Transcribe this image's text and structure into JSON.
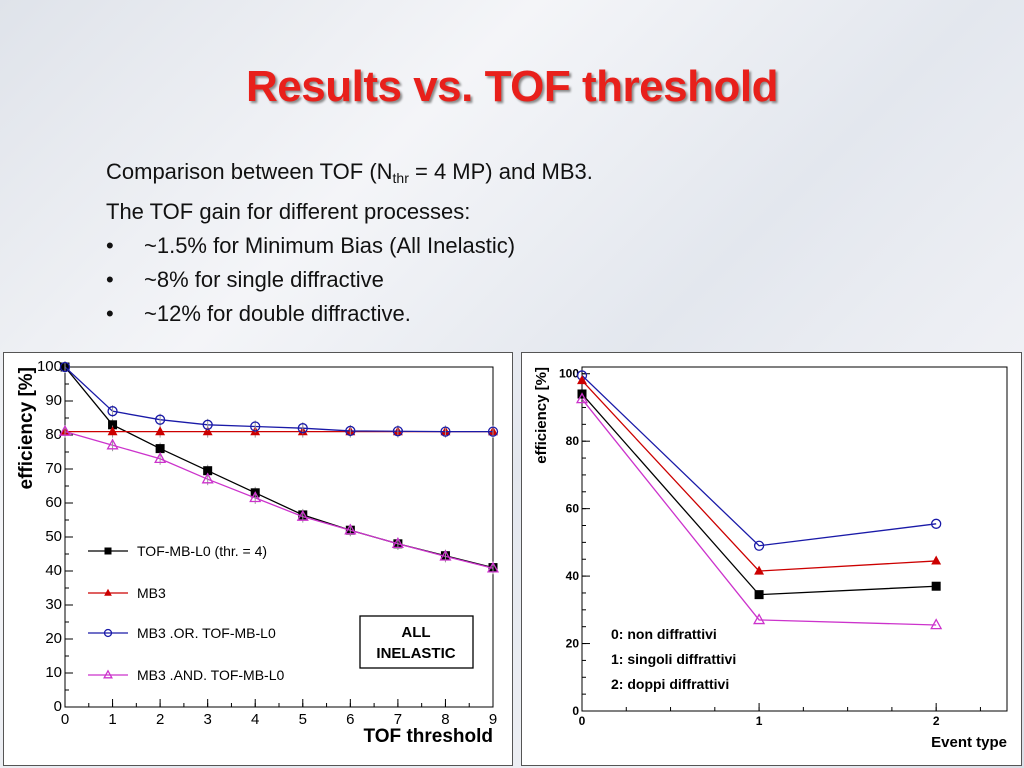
{
  "slide": {
    "title": "Results vs. TOF threshold",
    "intro_line1_a": "Comparison between TOF (N",
    "intro_line1_sub": "thr",
    "intro_line1_b": " = 4 MP) and MB3.",
    "intro_line2": "The TOF gain for different processes:",
    "bullet_char": "•",
    "bullets": [
      "~1.5% for Minimum Bias (All Inelastic)",
      "~8% for single diffractive",
      "~12% for double diffractive."
    ]
  },
  "chart_data": [
    {
      "type": "line",
      "xlabel": "TOF threshold",
      "ylabel": "efficiency [%]",
      "xlim": [
        0,
        9
      ],
      "ylim": [
        0,
        100
      ],
      "x_ticks": [
        "0",
        "1",
        "2",
        "3",
        "4",
        "5",
        "6",
        "7",
        "8",
        "9"
      ],
      "y_ticks": [
        "0",
        "10",
        "20",
        "30",
        "40",
        "50",
        "60",
        "70",
        "80",
        "90",
        "100"
      ],
      "x": [
        0,
        1,
        2,
        3,
        4,
        5,
        6,
        7,
        8,
        9
      ],
      "series": [
        {
          "name": "TOF-MB-L0 (thr. = 4)",
          "marker": "square",
          "color": "#000000",
          "values": [
            100,
            83,
            76,
            69.5,
            63,
            56.5,
            52,
            48,
            44.5,
            41
          ]
        },
        {
          "name": "MB3",
          "marker": "triangle",
          "color": "#cc0000",
          "values": [
            81,
            81,
            81,
            81,
            81,
            81,
            81,
            81,
            81,
            81
          ]
        },
        {
          "name": "MB3  .OR. TOF-MB-L0",
          "marker": "circle-open",
          "color": "#1a1aa8",
          "values": [
            100,
            87,
            84.5,
            83,
            82.5,
            82,
            81.2,
            81.1,
            81,
            81
          ]
        },
        {
          "name": "MB3  .AND. TOF-MB-L0",
          "marker": "triangle-open",
          "color": "#cc33cc",
          "values": [
            81,
            77,
            73,
            67,
            61.5,
            56,
            52,
            48,
            44.3,
            40.8
          ]
        }
      ],
      "annotation": [
        "ALL",
        "INELASTIC"
      ],
      "legend_position": "bottom-left",
      "grid": false
    },
    {
      "type": "line",
      "xlabel": "Event type",
      "ylabel": "efficiency [%]",
      "xlim": [
        0,
        2.4
      ],
      "ylim": [
        0,
        102
      ],
      "x_ticks": [
        "0",
        "1",
        "2"
      ],
      "y_ticks": [
        "0",
        "20",
        "40",
        "60",
        "80",
        "100"
      ],
      "x": [
        0,
        1,
        2
      ],
      "series": [
        {
          "marker": "circle-open",
          "color": "#1a1aa8",
          "values": [
            99.5,
            49,
            55.5
          ]
        },
        {
          "marker": "triangle",
          "color": "#cc0000",
          "values": [
            98,
            41.5,
            44.5
          ]
        },
        {
          "marker": "square",
          "color": "#000000",
          "values": [
            94,
            34.5,
            37
          ]
        },
        {
          "marker": "triangle-open",
          "color": "#cc33cc",
          "values": [
            92.5,
            27,
            25.5
          ]
        }
      ],
      "annotation": [
        "0: non diffrattivi",
        "1: singoli diffrattivi",
        "2: doppi diffrattivi"
      ],
      "grid": false
    }
  ]
}
